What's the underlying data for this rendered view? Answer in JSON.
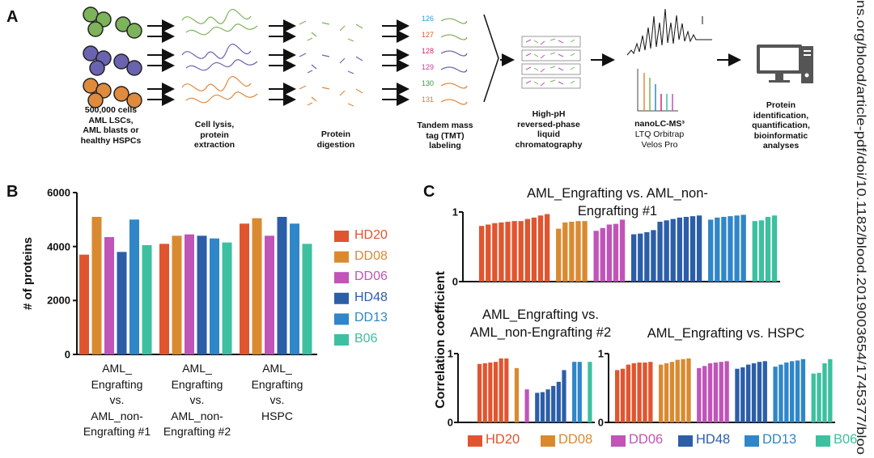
{
  "panels": {
    "a": "A",
    "b": "B",
    "c": "C"
  },
  "workflow": {
    "steps": [
      "500,000 cells\nAML LSCs,\nAML blasts or\nhealthy HSPCs",
      "Cell lysis,\nprotein\nextraction",
      "Protein\ndigestion",
      "Tandem mass\ntag (TMT)\nlabeling",
      "High-pH\nreversed-phase\nliquid\nchromatography",
      "nanoLC-MS³",
      "Protein\nidentification,\nquantification,\nbioinformatic\nanalyses"
    ],
    "ms_instrument": "LTQ Orbitrap\nVelos Pro",
    "tmt_tags": [
      126,
      127,
      128,
      129,
      130,
      131
    ]
  },
  "watermark": "ns.org/blood/article-pdf/doi/10.1182/blood.2019003654/1745377/bloo",
  "chart_data": [
    {
      "type": "grouped_bar",
      "ylabel": "# of proteins",
      "categories": [
        "AML_\nEngrafting\nvs.\nAML_non-\nEngrafting #1",
        "AML_\nEngrafting\nvs.\nAML_non-\nEngrafting #2",
        "AML_\nEngrafting\nvs.\nHSPC"
      ],
      "series": [
        {
          "name": "HD20",
          "color": "#e0552f",
          "values": [
            3700,
            4100,
            4850
          ]
        },
        {
          "name": "DD08",
          "color": "#d98a30",
          "values": [
            5100,
            4400,
            5050
          ]
        },
        {
          "name": "DD06",
          "color": "#c054b8",
          "values": [
            4350,
            4450,
            4400
          ]
        },
        {
          "name": "HD48",
          "color": "#2c5ea8",
          "values": [
            3800,
            4400,
            5100
          ]
        },
        {
          "name": "DD13",
          "color": "#2f86c8",
          "values": [
            5000,
            4300,
            4850
          ]
        },
        {
          "name": "B06",
          "color": "#3cc0a0",
          "values": [
            4050,
            4150,
            4100
          ]
        }
      ],
      "ylim": [
        0,
        6000
      ],
      "yticks": [
        0,
        2000,
        4000,
        6000
      ]
    },
    {
      "type": "block_bar",
      "title": "AML_Engrafting vs. AML_non-Engrafting #1",
      "ylabel": "Correlation coefficient",
      "series": [
        {
          "name": "HD20",
          "color": "#e0552f",
          "values": [
            0.8,
            0.82,
            0.84,
            0.85,
            0.86,
            0.87,
            0.87,
            0.9,
            0.92,
            0.95,
            0.97
          ]
        },
        {
          "name": "DD08",
          "color": "#d98a30",
          "values": [
            0.76,
            0.85,
            0.86,
            0.87,
            0.87
          ]
        },
        {
          "name": "DD06",
          "color": "#c054b8",
          "values": [
            0.73,
            0.77,
            0.82,
            0.83,
            0.89
          ]
        },
        {
          "name": "HD48",
          "color": "#2c5ea8",
          "values": [
            0.68,
            0.69,
            0.71,
            0.74,
            0.86,
            0.88,
            0.9,
            0.92,
            0.93,
            0.94,
            0.95
          ]
        },
        {
          "name": "DD13",
          "color": "#2f86c8",
          "values": [
            0.89,
            0.92,
            0.93,
            0.94,
            0.95,
            0.96
          ]
        },
        {
          "name": "B06",
          "color": "#3cc0a0",
          "values": [
            0.87,
            0.88,
            0.93,
            0.95
          ]
        }
      ],
      "ylim": [
        0,
        1
      ],
      "yticks": [
        0,
        1
      ]
    },
    {
      "type": "block_bar",
      "title": "AML_Engrafting vs.\nAML_non-Engrafting #2",
      "series": [
        {
          "name": "HD20",
          "color": "#e0552f",
          "values": [
            0.85,
            0.86,
            0.87,
            0.88,
            0.93,
            0.93
          ]
        },
        {
          "name": "DD08",
          "color": "#d98a30",
          "values": [
            0.79
          ]
        },
        {
          "name": "DD06",
          "color": "#c054b8",
          "values": [
            0.48
          ]
        },
        {
          "name": "HD48",
          "color": "#2c5ea8",
          "values": [
            0.43,
            0.44,
            0.48,
            0.53,
            0.59,
            0.76
          ]
        },
        {
          "name": "DD13",
          "color": "#2f86c8",
          "values": [
            0.88,
            0.88
          ]
        },
        {
          "name": "B06",
          "color": "#3cc0a0",
          "values": [
            0.88
          ]
        }
      ],
      "ylim": [
        0,
        1
      ],
      "yticks": [
        0,
        1
      ]
    },
    {
      "type": "block_bar",
      "title": "AML_Engrafting vs. HSPC",
      "series": [
        {
          "name": "HD20",
          "color": "#e0552f",
          "values": [
            0.76,
            0.78,
            0.84,
            0.86,
            0.87,
            0.87,
            0.88
          ]
        },
        {
          "name": "DD08",
          "color": "#d98a30",
          "values": [
            0.84,
            0.86,
            0.88,
            0.91,
            0.92,
            0.93
          ]
        },
        {
          "name": "DD06",
          "color": "#c054b8",
          "values": [
            0.79,
            0.82,
            0.86,
            0.87,
            0.88,
            0.89
          ]
        },
        {
          "name": "HD48",
          "color": "#2c5ea8",
          "values": [
            0.78,
            0.8,
            0.84,
            0.86,
            0.88,
            0.89
          ]
        },
        {
          "name": "DD13",
          "color": "#2f86c8",
          "values": [
            0.81,
            0.84,
            0.87,
            0.89,
            0.9,
            0.92
          ]
        },
        {
          "name": "B06",
          "color": "#3cc0a0",
          "values": [
            0.71,
            0.72,
            0.86,
            0.92
          ]
        }
      ],
      "ylim": [
        0,
        1
      ],
      "yticks": [
        0,
        1
      ]
    }
  ]
}
